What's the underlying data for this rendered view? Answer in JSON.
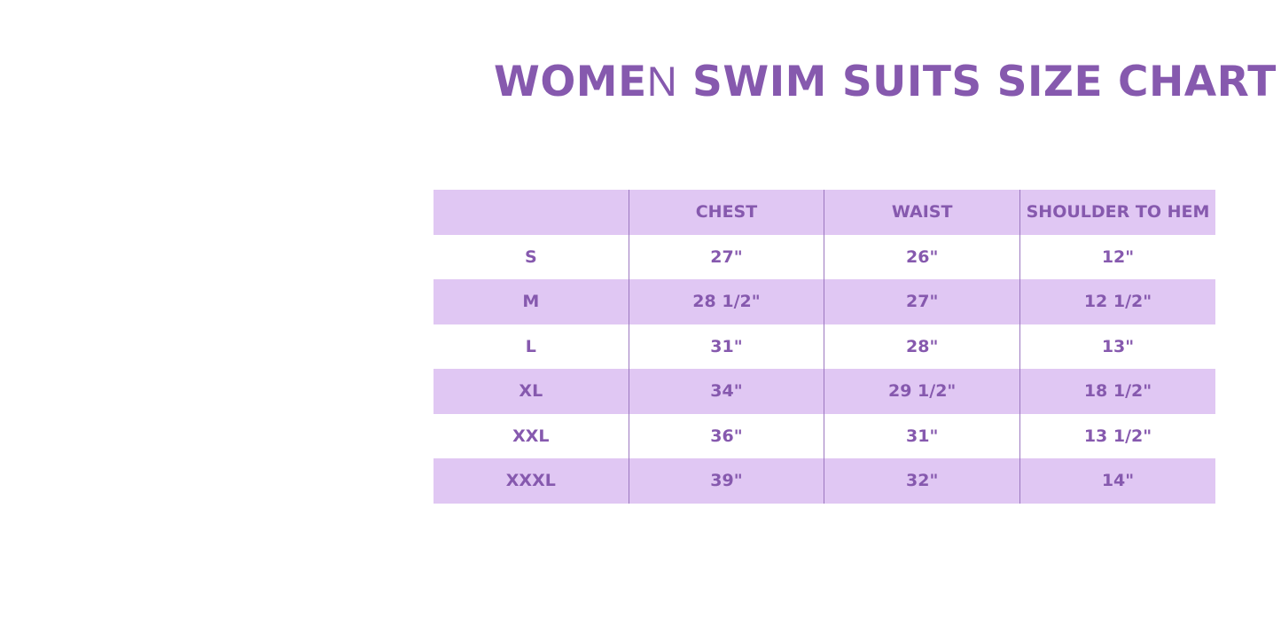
{
  "title": {
    "part1": "WOME",
    "part2": "N",
    "part3": " SWIM SUITS SIZE CHART"
  },
  "colors": {
    "text": "#8659ae",
    "row_fill": "#e0c7f3"
  },
  "table": {
    "headers": [
      "",
      "CHEST",
      "WAIST",
      "SHOULDER TO HEM"
    ],
    "rows": [
      [
        "S",
        "27\"",
        "26\"",
        "12\""
      ],
      [
        "M",
        "28 1/2\"",
        "27\"",
        "12 1/2\""
      ],
      [
        "L",
        "31\"",
        "28\"",
        "13\""
      ],
      [
        "XL",
        "34\"",
        "29 1/2\"",
        "18 1/2\""
      ],
      [
        "XXL",
        "36\"",
        "31\"",
        "13 1/2\""
      ],
      [
        "XXXL",
        "39\"",
        "32\"",
        "14\""
      ]
    ]
  }
}
